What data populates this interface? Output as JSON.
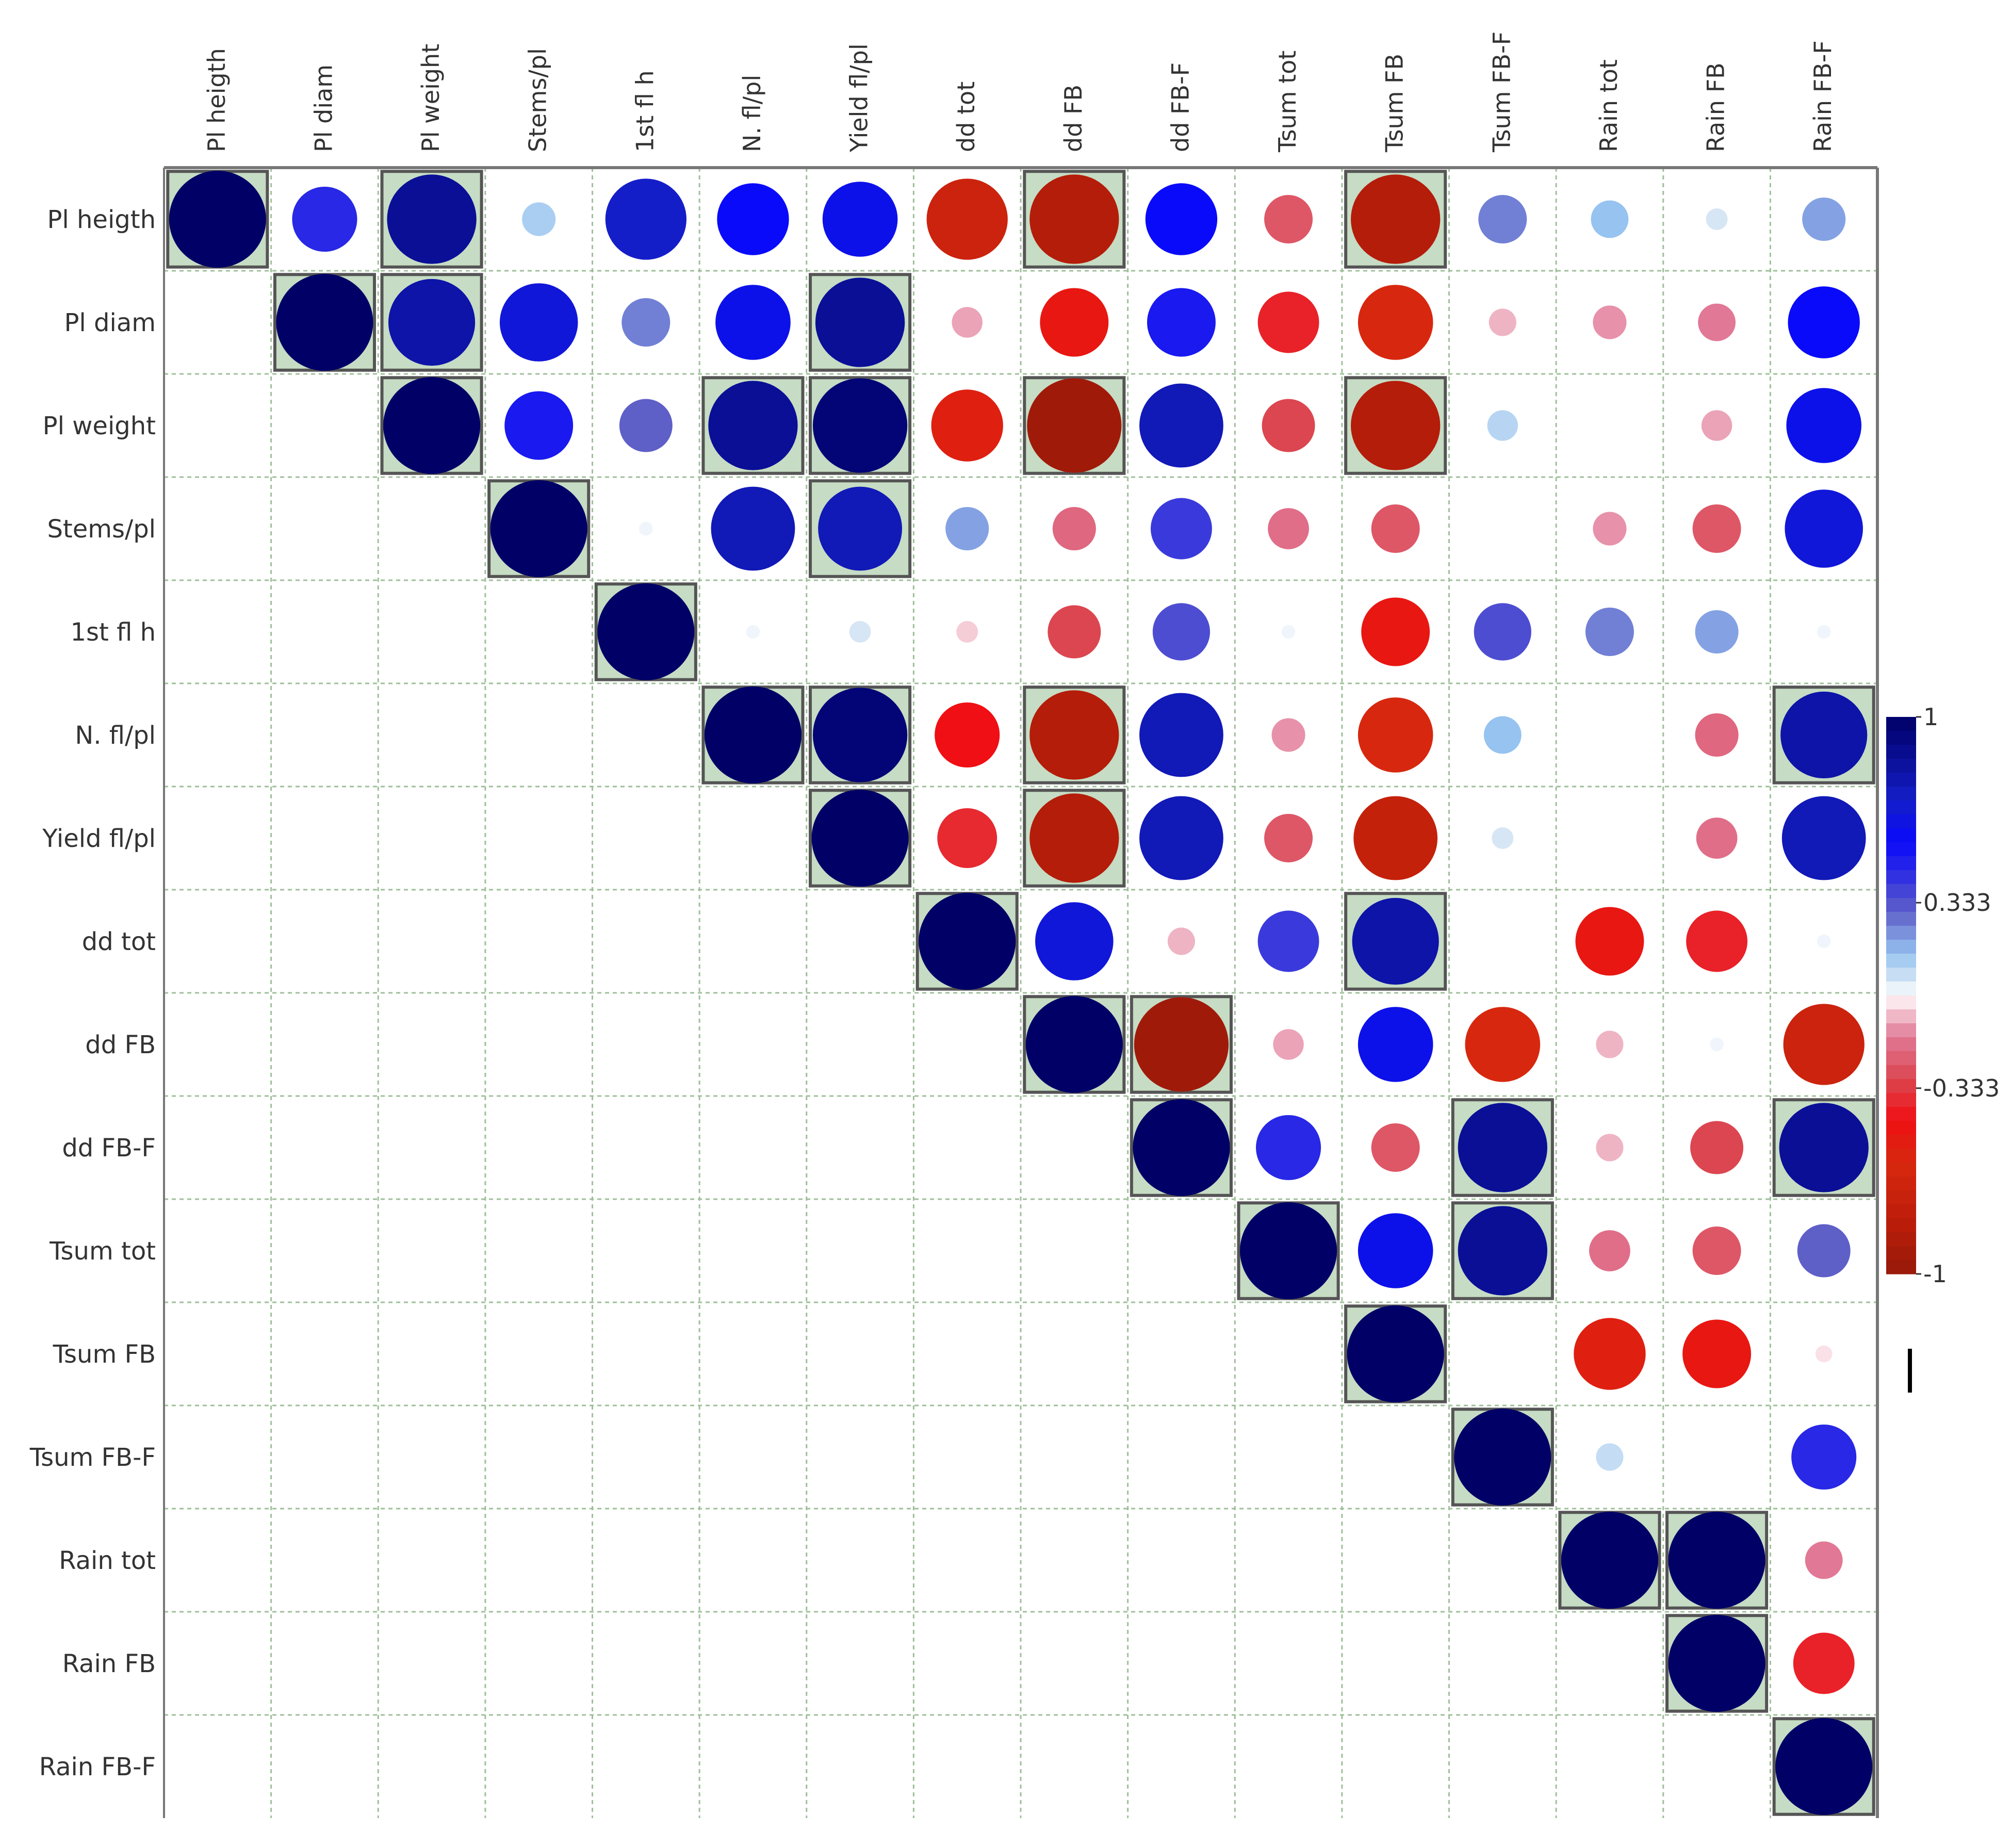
{
  "chart_data": {
    "type": "heatmap",
    "subtype": "correlation-matrix-upper-triangle",
    "title": "",
    "variables": [
      "Pl heigth",
      "Pl diam",
      "Pl weight",
      "Stems/pl",
      "1st fl h",
      "N. fl/pl",
      "Yield fl/pl",
      "dd tot",
      "dd FB",
      "dd FB-F",
      "Tsum tot",
      "Tsum FB",
      "Tsum FB-F",
      "Rain tot",
      "Rain FB",
      "Rain FB-F"
    ],
    "matrix": [
      [
        1.0,
        0.45,
        0.85,
        0.12,
        0.7,
        0.55,
        0.6,
        -0.7,
        -0.85,
        0.55,
        -0.25,
        -0.85,
        0.25,
        0.15,
        0.05,
        0.2
      ],
      [
        null,
        1.0,
        0.8,
        0.65,
        0.25,
        0.6,
        0.85,
        -0.1,
        -0.5,
        0.5,
        -0.4,
        -0.6,
        -0.08,
        -0.12,
        -0.15,
        0.55
      ],
      [
        null,
        null,
        1.0,
        0.5,
        0.3,
        0.85,
        0.95,
        -0.55,
        -0.95,
        0.75,
        -0.3,
        -0.85,
        0.1,
        null,
        -0.1,
        0.6
      ],
      [
        null,
        null,
        null,
        1.0,
        0.02,
        0.75,
        0.75,
        0.2,
        -0.2,
        0.4,
        -0.18,
        -0.25,
        null,
        -0.12,
        -0.25,
        0.65
      ],
      [
        null,
        null,
        null,
        null,
        1.0,
        0.02,
        0.05,
        -0.05,
        -0.3,
        0.35,
        0.02,
        -0.5,
        0.35,
        0.25,
        0.2,
        0.02
      ],
      [
        null,
        null,
        null,
        null,
        null,
        1.0,
        0.95,
        -0.45,
        -0.85,
        0.75,
        -0.12,
        -0.6,
        0.15,
        null,
        -0.2,
        0.8
      ],
      [
        null,
        null,
        null,
        null,
        null,
        null,
        1.0,
        -0.38,
        -0.85,
        0.75,
        -0.25,
        -0.75,
        0.05,
        null,
        -0.18,
        0.75
      ],
      [
        null,
        null,
        null,
        null,
        null,
        null,
        null,
        1.0,
        0.65,
        -0.08,
        0.4,
        0.8,
        null,
        -0.5,
        -0.4,
        0.02
      ],
      [
        null,
        null,
        null,
        null,
        null,
        null,
        null,
        null,
        1.0,
        -0.95,
        -0.1,
        0.6,
        -0.6,
        -0.08,
        0.02,
        -0.7
      ],
      [
        null,
        null,
        null,
        null,
        null,
        null,
        null,
        null,
        null,
        1.0,
        0.45,
        -0.25,
        0.85,
        -0.08,
        -0.3,
        0.85
      ],
      [
        null,
        null,
        null,
        null,
        null,
        null,
        null,
        null,
        null,
        null,
        1.0,
        0.6,
        0.85,
        -0.18,
        -0.25,
        0.3
      ],
      [
        null,
        null,
        null,
        null,
        null,
        null,
        null,
        null,
        null,
        null,
        null,
        1.0,
        null,
        -0.55,
        -0.5,
        -0.03
      ],
      [
        null,
        null,
        null,
        null,
        null,
        null,
        null,
        null,
        null,
        null,
        null,
        null,
        1.0,
        0.08,
        null,
        0.45
      ],
      [
        null,
        null,
        null,
        null,
        null,
        null,
        null,
        null,
        null,
        null,
        null,
        null,
        null,
        1.0,
        1.0,
        -0.15
      ],
      [
        null,
        null,
        null,
        null,
        null,
        null,
        null,
        null,
        null,
        null,
        null,
        null,
        null,
        null,
        1.0,
        -0.4
      ],
      [
        null,
        null,
        null,
        null,
        null,
        null,
        null,
        null,
        null,
        null,
        null,
        null,
        null,
        null,
        null,
        1.0
      ]
    ],
    "significant_cells": [
      [
        0,
        0
      ],
      [
        0,
        2
      ],
      [
        0,
        8
      ],
      [
        0,
        11
      ],
      [
        1,
        1
      ],
      [
        1,
        2
      ],
      [
        1,
        6
      ],
      [
        2,
        2
      ],
      [
        2,
        5
      ],
      [
        2,
        6
      ],
      [
        2,
        8
      ],
      [
        2,
        11
      ],
      [
        3,
        3
      ],
      [
        3,
        6
      ],
      [
        4,
        4
      ],
      [
        5,
        5
      ],
      [
        5,
        6
      ],
      [
        5,
        8
      ],
      [
        5,
        15
      ],
      [
        6,
        6
      ],
      [
        6,
        8
      ],
      [
        7,
        7
      ],
      [
        7,
        11
      ],
      [
        8,
        8
      ],
      [
        8,
        9
      ],
      [
        9,
        9
      ],
      [
        9,
        12
      ],
      [
        9,
        15
      ],
      [
        10,
        10
      ],
      [
        10,
        12
      ],
      [
        11,
        11
      ],
      [
        12,
        12
      ],
      [
        13,
        13
      ],
      [
        13,
        14
      ],
      [
        14,
        14
      ],
      [
        15,
        15
      ]
    ],
    "colorbar": {
      "range": [
        -1,
        1
      ],
      "tick_labels": [
        "1",
        "0.333",
        "-0.333",
        "-1"
      ],
      "tick_values": [
        1,
        0.333,
        -0.333,
        -1
      ],
      "positive_color": "#000066",
      "mid_color": "#ffffff",
      "negative_color": "#990000"
    },
    "grid": true,
    "legend_position": "right",
    "significant_fill": "#c6dcc4"
  }
}
